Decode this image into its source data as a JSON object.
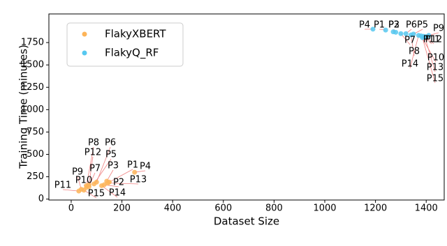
{
  "chart_data": {
    "type": "scatter",
    "xlabel": "Dataset Size",
    "ylabel": "Training Time (minutes)",
    "xlim": [
      -88,
      1471
    ],
    "ylim": [
      -10,
      2070
    ],
    "xticks": [
      0,
      200,
      400,
      600,
      800,
      1000,
      1200,
      1400
    ],
    "yticks": [
      0,
      250,
      500,
      750,
      1000,
      1250,
      1500,
      1750
    ],
    "legend": "upper left",
    "series": [
      {
        "name": "FlakyXBERT",
        "color": "#fdb458",
        "labels": [
          "P1",
          "P2",
          "P3",
          "P4",
          "P5",
          "P6",
          "P7",
          "P8",
          "P9",
          "P10",
          "P11",
          "P12",
          "P13",
          "P14",
          "P15"
        ],
        "x": [
          150,
          130,
          140,
          250,
          90,
          100,
          70,
          60,
          40,
          60,
          30,
          70,
          145,
          120,
          50
        ],
        "values": [
          190,
          160,
          200,
          300,
          170,
          190,
          140,
          150,
          110,
          130,
          90,
          160,
          180,
          150,
          100
        ]
      },
      {
        "name": "FlakyQ_RF",
        "color": "#56c8f0",
        "labels": [
          "P1",
          "P2",
          "P3",
          "P4",
          "P5",
          "P6",
          "P7",
          "P8",
          "P9",
          "P10",
          "P11",
          "P12",
          "P13",
          "P14",
          "P15"
        ],
        "x": [
          1240,
          1270,
          1280,
          1190,
          1350,
          1320,
          1300,
          1340,
          1410,
          1380,
          1390,
          1400,
          1395,
          1370,
          1385
        ],
        "values": [
          1890,
          1870,
          1865,
          1900,
          1845,
          1850,
          1850,
          1835,
          1830,
          1825,
          1820,
          1815,
          1810,
          1830,
          1805
        ]
      }
    ]
  }
}
